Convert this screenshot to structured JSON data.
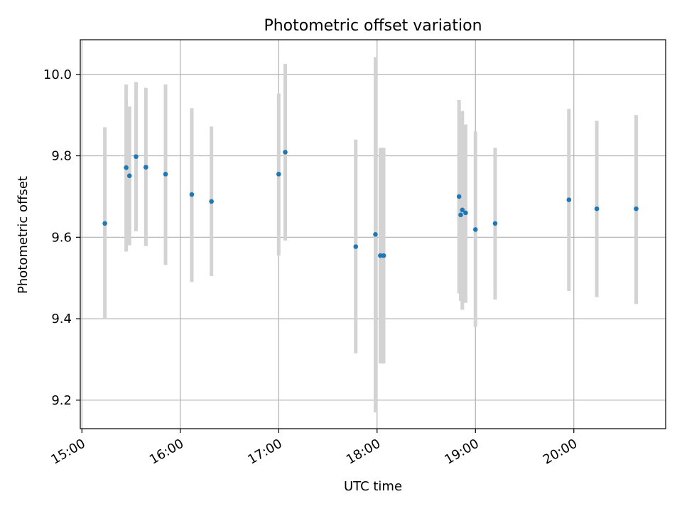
{
  "chart_data": {
    "type": "scatter",
    "title": "Photometric offset variation",
    "xlabel": "UTC time",
    "ylabel": "Photometric offset",
    "x_unit": "UTC time of day (HH:MM)",
    "xlim": [
      "14:59",
      "20:56"
    ],
    "ylim": [
      9.13,
      10.085
    ],
    "x_ticks": [
      "15:00",
      "16:00",
      "17:00",
      "18:00",
      "19:00",
      "20:00"
    ],
    "y_ticks": [
      "9.2",
      "9.4",
      "9.6",
      "9.8",
      "10.0"
    ],
    "grid": true,
    "error_bar_color": "#d3d3d3",
    "point_color": "#1f77b4",
    "series": [
      {
        "points": [
          {
            "x": "15:14",
            "y": 9.634,
            "err_low": 9.4,
            "err_high": 9.87
          },
          {
            "x": "15:27",
            "y": 9.771,
            "err_low": 9.565,
            "err_high": 9.975
          },
          {
            "x": "15:29",
            "y": 9.751,
            "err_low": 9.58,
            "err_high": 9.921
          },
          {
            "x": "15:33",
            "y": 9.798,
            "err_low": 9.615,
            "err_high": 9.981
          },
          {
            "x": "15:39",
            "y": 9.772,
            "err_low": 9.578,
            "err_high": 9.967
          },
          {
            "x": "15:51",
            "y": 9.755,
            "err_low": 9.532,
            "err_high": 9.975
          },
          {
            "x": "16:07",
            "y": 9.705,
            "err_low": 9.49,
            "err_high": 9.917
          },
          {
            "x": "16:19",
            "y": 9.688,
            "err_low": 9.505,
            "err_high": 9.872
          },
          {
            "x": "17:00",
            "y": 9.755,
            "err_low": 9.555,
            "err_high": 9.953
          },
          {
            "x": "17:04",
            "y": 9.809,
            "err_low": 9.592,
            "err_high": 10.026
          },
          {
            "x": "17:47",
            "y": 9.577,
            "err_low": 9.315,
            "err_high": 9.84
          },
          {
            "x": "17:59",
            "y": 9.607,
            "err_low": 9.17,
            "err_high": 10.042
          },
          {
            "x": "18:02",
            "y": 9.555,
            "err_low": 9.29,
            "err_high": 9.82
          },
          {
            "x": "18:04",
            "y": 9.555,
            "err_low": 9.29,
            "err_high": 9.82
          },
          {
            "x": "18:50",
            "y": 9.7,
            "err_low": 9.462,
            "err_high": 9.937
          },
          {
            "x": "18:51",
            "y": 9.655,
            "err_low": 9.444,
            "err_high": 9.866
          },
          {
            "x": "18:52",
            "y": 9.667,
            "err_low": 9.422,
            "err_high": 9.91
          },
          {
            "x": "18:54",
            "y": 9.66,
            "err_low": 9.439,
            "err_high": 9.877
          },
          {
            "x": "19:00",
            "y": 9.619,
            "err_low": 9.38,
            "err_high": 9.86
          },
          {
            "x": "19:12",
            "y": 9.634,
            "err_low": 9.447,
            "err_high": 9.82
          },
          {
            "x": "19:57",
            "y": 9.692,
            "err_low": 9.468,
            "err_high": 9.915
          },
          {
            "x": "20:14",
            "y": 9.67,
            "err_low": 9.453,
            "err_high": 9.886
          },
          {
            "x": "20:38",
            "y": 9.67,
            "err_low": 9.436,
            "err_high": 9.9
          }
        ]
      }
    ]
  }
}
